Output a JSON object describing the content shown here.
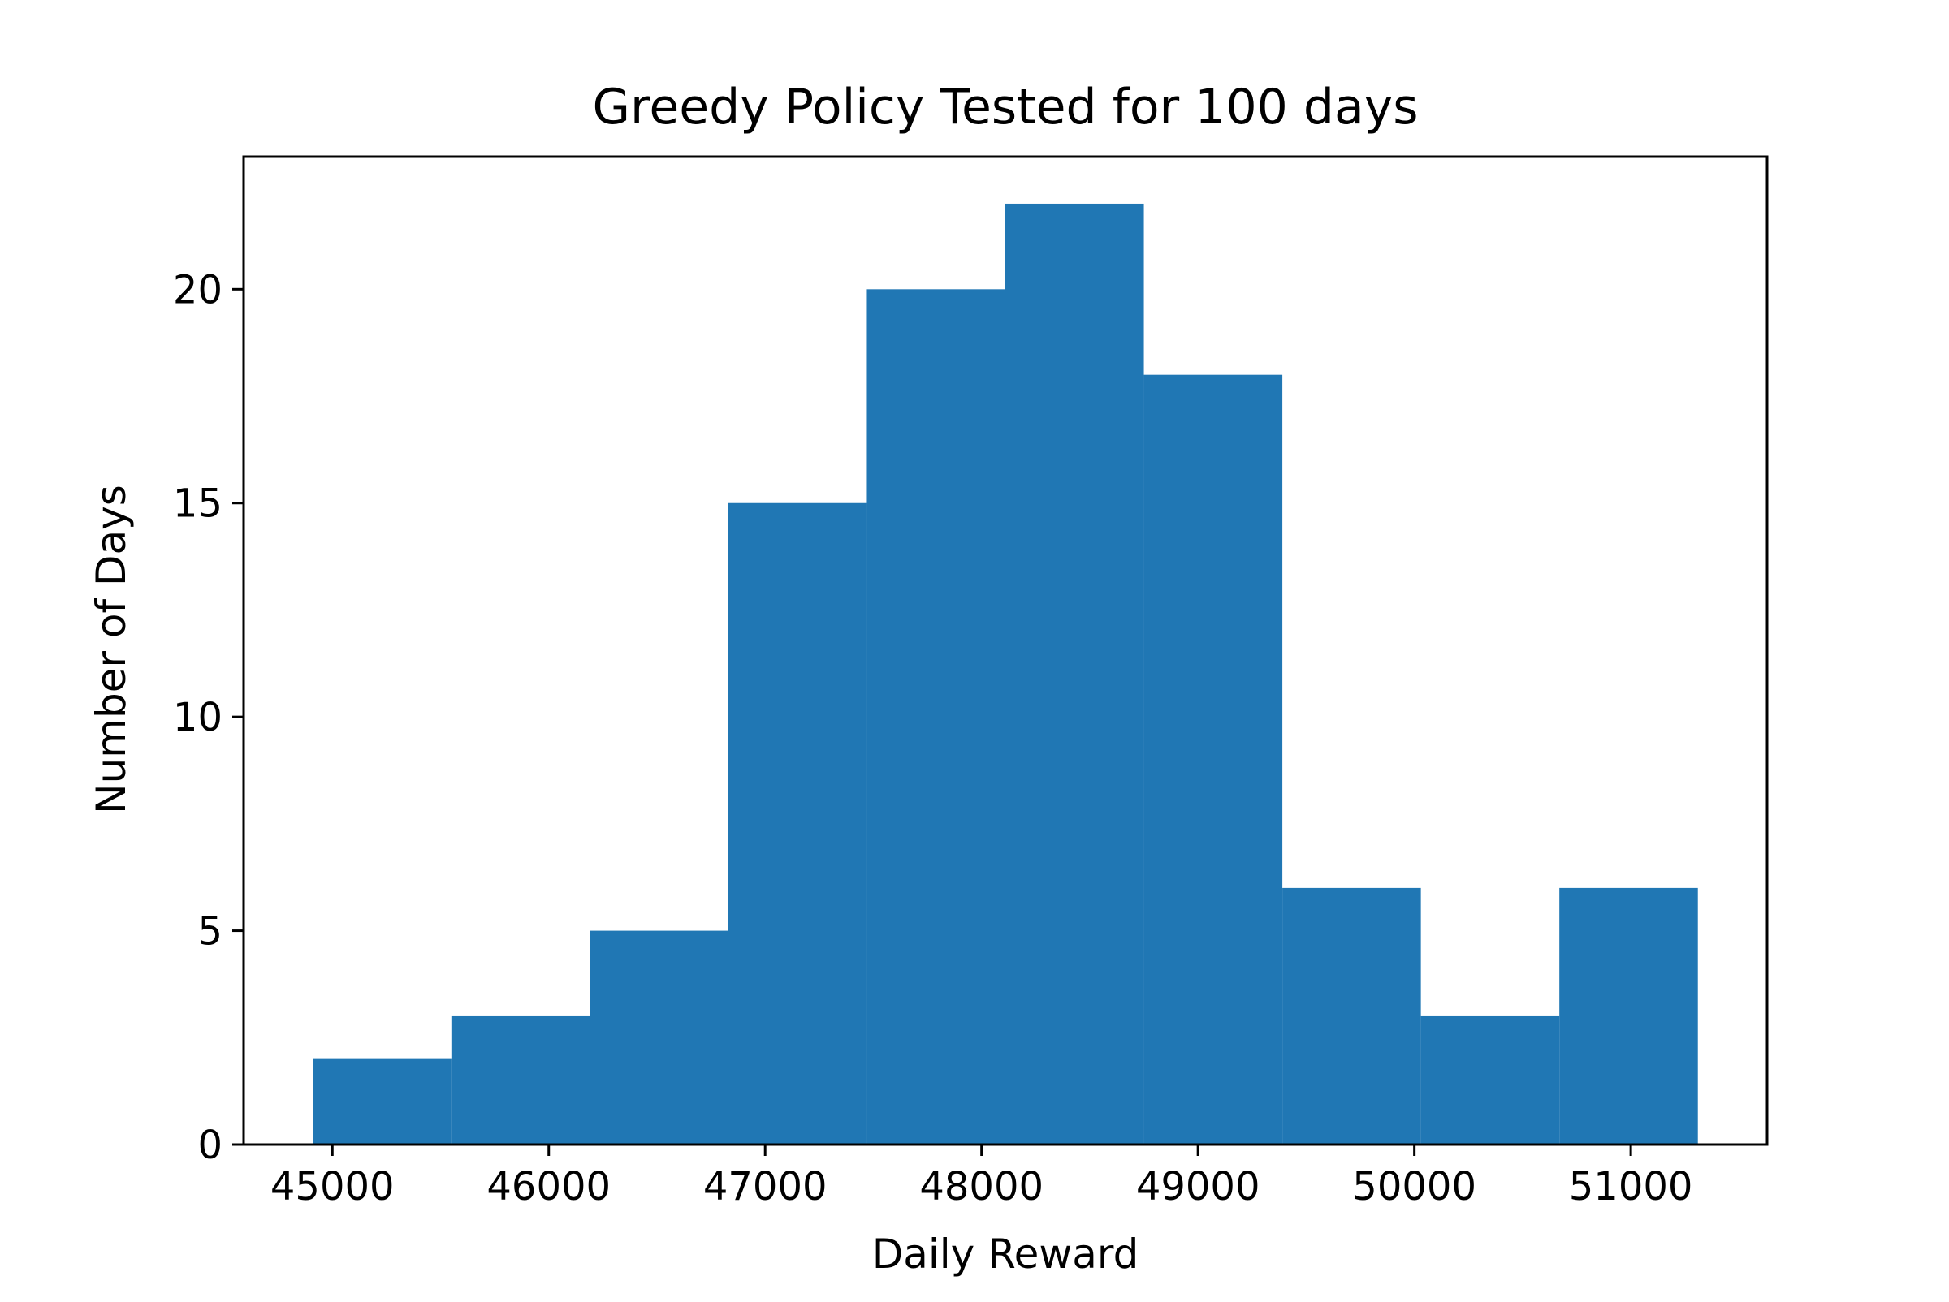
{
  "chart_data": {
    "type": "bar",
    "subtype": "histogram",
    "title": "Greedy Policy Tested for 100 days",
    "xlabel": "Daily Reward",
    "ylabel": "Number of Days",
    "bins": [
      {
        "start": 44910,
        "end": 45550,
        "count": 2
      },
      {
        "start": 45550,
        "end": 46190,
        "count": 3
      },
      {
        "start": 46190,
        "end": 46830,
        "count": 5
      },
      {
        "start": 46830,
        "end": 47470,
        "count": 15
      },
      {
        "start": 47470,
        "end": 48110,
        "count": 20
      },
      {
        "start": 48110,
        "end": 48750,
        "count": 22
      },
      {
        "start": 48750,
        "end": 49390,
        "count": 18
      },
      {
        "start": 49390,
        "end": 50030,
        "count": 6
      },
      {
        "start": 50030,
        "end": 50670,
        "count": 3
      },
      {
        "start": 50670,
        "end": 51310,
        "count": 6
      }
    ],
    "xlim": [
      44590,
      51630
    ],
    "ylim": [
      0,
      23.1
    ],
    "xticks": [
      45000,
      46000,
      47000,
      48000,
      49000,
      50000,
      51000
    ],
    "xtick_labels": [
      "45000",
      "46000",
      "47000",
      "48000",
      "49000",
      "50000",
      "51000"
    ],
    "yticks": [
      0,
      5,
      10,
      15,
      20
    ],
    "ytick_labels": [
      "0",
      "5",
      "10",
      "15",
      "20"
    ],
    "bar_color": "#2077b4",
    "grid": false,
    "legend": false
  }
}
